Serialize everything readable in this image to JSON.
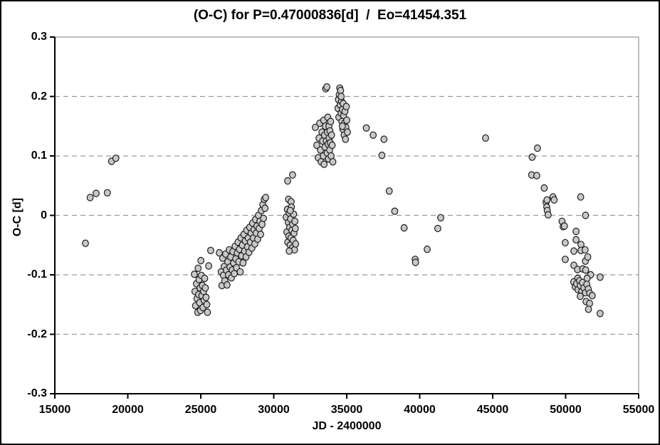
{
  "colors": {
    "background": "#ffffff",
    "outer_border": "#000000",
    "frame": "#7f7f7f",
    "axis": "#000000",
    "grid": "#999999",
    "marker_fill": "#c8c8c8",
    "marker_stroke": "#1a1a1a",
    "text": "#000000"
  },
  "chart_data": {
    "type": "scatter",
    "title": "(O-C) for P=0.47000836[d]  /  Eo=41454.351",
    "xlabel": "JD - 2400000",
    "ylabel": "O-C [d]",
    "xlim": [
      15000,
      55000
    ],
    "ylim": [
      -0.3,
      0.3
    ],
    "x_ticks": [
      15000,
      20000,
      25000,
      30000,
      35000,
      40000,
      45000,
      50000,
      55000
    ],
    "x_tick_labels": [
      "15000",
      "20000",
      "25000",
      "30000",
      "35000",
      "40000",
      "45000",
      "50000",
      "55000"
    ],
    "y_ticks": [
      0.3,
      0.2,
      0.1,
      0,
      -0.1,
      -0.2,
      -0.3
    ],
    "y_tick_labels": [
      "0.3",
      "0.2",
      "0.1",
      "0",
      "-0.1",
      "-0.2",
      "-0.3"
    ],
    "grid": "horizontal-dashed",
    "legend": "none",
    "marker": {
      "shape": "circle",
      "radius_px": 4.5
    },
    "points": [
      [
        17100,
        -0.047
      ],
      [
        17420,
        0.03
      ],
      [
        17830,
        0.037
      ],
      [
        18600,
        0.038
      ],
      [
        18890,
        0.091
      ],
      [
        19180,
        0.096
      ],
      [
        24560,
        -0.099
      ],
      [
        24600,
        -0.128
      ],
      [
        24640,
        -0.152
      ],
      [
        24700,
        -0.115
      ],
      [
        24740,
        -0.14
      ],
      [
        24790,
        -0.163
      ],
      [
        24820,
        -0.089
      ],
      [
        24850,
        -0.133
      ],
      [
        24880,
        -0.108
      ],
      [
        24920,
        -0.147
      ],
      [
        24950,
        -0.122
      ],
      [
        24980,
        -0.16
      ],
      [
        25010,
        -0.076
      ],
      [
        25040,
        -0.101
      ],
      [
        25070,
        -0.135
      ],
      [
        25110,
        -0.118
      ],
      [
        25150,
        -0.155
      ],
      [
        25190,
        -0.128
      ],
      [
        25230,
        -0.143
      ],
      [
        25270,
        -0.106
      ],
      [
        25310,
        -0.122
      ],
      [
        25360,
        -0.138
      ],
      [
        25410,
        -0.15
      ],
      [
        25460,
        -0.163
      ],
      [
        25540,
        -0.085
      ],
      [
        25680,
        -0.059
      ],
      [
        26270,
        -0.063
      ],
      [
        26400,
        -0.095
      ],
      [
        26450,
        -0.118
      ],
      [
        26500,
        -0.072
      ],
      [
        26550,
        -0.101
      ],
      [
        26600,
        -0.086
      ],
      [
        26650,
        -0.11
      ],
      [
        26700,
        -0.065
      ],
      [
        26750,
        -0.092
      ],
      [
        26800,
        -0.117
      ],
      [
        26850,
        -0.078
      ],
      [
        26900,
        -0.1
      ],
      [
        26950,
        -0.058
      ],
      [
        27000,
        -0.087
      ],
      [
        27050,
        -0.07
      ],
      [
        27100,
        -0.105
      ],
      [
        27150,
        -0.092
      ],
      [
        27200,
        -0.061
      ],
      [
        27250,
        -0.08
      ],
      [
        27300,
        -0.098
      ],
      [
        27350,
        -0.052
      ],
      [
        27400,
        -0.073
      ],
      [
        27450,
        -0.088
      ],
      [
        27500,
        -0.063
      ],
      [
        27550,
        -0.045
      ],
      [
        27600,
        -0.078
      ],
      [
        27650,
        -0.057
      ],
      [
        27700,
        -0.095
      ],
      [
        27750,
        -0.038
      ],
      [
        27800,
        -0.068
      ],
      [
        27850,
        -0.05
      ],
      [
        27900,
        -0.08
      ],
      [
        27950,
        -0.032
      ],
      [
        28000,
        -0.06
      ],
      [
        28050,
        -0.043
      ],
      [
        28100,
        -0.07
      ],
      [
        28150,
        -0.025
      ],
      [
        28200,
        -0.053
      ],
      [
        28250,
        -0.038
      ],
      [
        28300,
        -0.062
      ],
      [
        28350,
        -0.02
      ],
      [
        28400,
        -0.045
      ],
      [
        28450,
        -0.03
      ],
      [
        28500,
        -0.055
      ],
      [
        28550,
        -0.013
      ],
      [
        28600,
        -0.038
      ],
      [
        28650,
        -0.024
      ],
      [
        28700,
        -0.048
      ],
      [
        28750,
        -0.007
      ],
      [
        28800,
        -0.03
      ],
      [
        28850,
        -0.018
      ],
      [
        28900,
        -0.04
      ],
      [
        28950,
        0.0
      ],
      [
        29000,
        -0.022
      ],
      [
        29050,
        -0.01
      ],
      [
        29100,
        -0.032
      ],
      [
        29150,
        0.008
      ],
      [
        29200,
        -0.015
      ],
      [
        29250,
        0.018
      ],
      [
        29300,
        -0.005
      ],
      [
        29350,
        0.027
      ],
      [
        29400,
        0.012
      ],
      [
        29450,
        0.03
      ],
      [
        30950,
        0.058
      ],
      [
        31290,
        0.068
      ],
      [
        31010,
        0.027
      ],
      [
        31190,
        0.023
      ],
      [
        30850,
        -0.003
      ],
      [
        30900,
        -0.028
      ],
      [
        30930,
        0.01
      ],
      [
        30960,
        -0.045
      ],
      [
        31000,
        -0.012
      ],
      [
        31030,
        -0.035
      ],
      [
        31060,
        0.004
      ],
      [
        31090,
        -0.02
      ],
      [
        31120,
        -0.05
      ],
      [
        31150,
        -0.006
      ],
      [
        31180,
        -0.038
      ],
      [
        31210,
        0.014
      ],
      [
        31240,
        -0.025
      ],
      [
        31270,
        -0.055
      ],
      [
        31300,
        -0.015
      ],
      [
        31330,
        -0.042
      ],
      [
        31360,
        0.002
      ],
      [
        31390,
        -0.03
      ],
      [
        31420,
        -0.058
      ],
      [
        31450,
        -0.01
      ],
      [
        31480,
        -0.022
      ],
      [
        31500,
        -0.048
      ],
      [
        31130,
        0.008
      ],
      [
        31060,
        -0.06
      ],
      [
        32850,
        0.148
      ],
      [
        32950,
        0.118
      ],
      [
        33050,
        0.097
      ],
      [
        33100,
        0.13
      ],
      [
        33150,
        0.155
      ],
      [
        33200,
        0.11
      ],
      [
        33250,
        0.09
      ],
      [
        33300,
        0.14
      ],
      [
        33350,
        0.125
      ],
      [
        33400,
        0.1
      ],
      [
        33420,
        0.16
      ],
      [
        33450,
        0.086
      ],
      [
        33480,
        0.135
      ],
      [
        33510,
        0.115
      ],
      [
        33530,
        0.15
      ],
      [
        33560,
        0.213
      ],
      [
        33600,
        0.125
      ],
      [
        33640,
        0.216
      ],
      [
        33660,
        0.105
      ],
      [
        33680,
        0.14
      ],
      [
        33700,
        0.165
      ],
      [
        33720,
        0.12
      ],
      [
        33750,
        0.095
      ],
      [
        33780,
        0.15
      ],
      [
        33800,
        0.13
      ],
      [
        33830,
        0.11
      ],
      [
        33850,
        0.142
      ],
      [
        33880,
        0.122
      ],
      [
        33900,
        0.158
      ],
      [
        33930,
        0.1
      ],
      [
        33960,
        0.135
      ],
      [
        34000,
        0.118
      ],
      [
        34050,
        0.09
      ],
      [
        34400,
        0.18
      ],
      [
        34430,
        0.195
      ],
      [
        34460,
        0.165
      ],
      [
        34490,
        0.203
      ],
      [
        34520,
        0.214
      ],
      [
        34550,
        0.186
      ],
      [
        34580,
        0.21
      ],
      [
        34610,
        0.172
      ],
      [
        34640,
        0.192
      ],
      [
        34670,
        0.158
      ],
      [
        34700,
        0.178
      ],
      [
        34730,
        0.145
      ],
      [
        34760,
        0.188
      ],
      [
        34790,
        0.168
      ],
      [
        34820,
        0.135
      ],
      [
        34850,
        0.155
      ],
      [
        34880,
        0.175
      ],
      [
        34910,
        0.128
      ],
      [
        34940,
        0.148
      ],
      [
        34970,
        0.183
      ],
      [
        35000,
        0.16
      ],
      [
        35050,
        0.14
      ],
      [
        34620,
        0.2
      ],
      [
        34700,
        0.15
      ],
      [
        36340,
        0.147
      ],
      [
        36810,
        0.135
      ],
      [
        37410,
        0.101
      ],
      [
        37550,
        0.128
      ],
      [
        37910,
        0.041
      ],
      [
        38290,
        0.007
      ],
      [
        38930,
        -0.021
      ],
      [
        39690,
        -0.074
      ],
      [
        39710,
        -0.079
      ],
      [
        40510,
        -0.057
      ],
      [
        41240,
        -0.022
      ],
      [
        41440,
        -0.004
      ],
      [
        44510,
        0.13
      ],
      [
        47670,
        0.068
      ],
      [
        47700,
        0.098
      ],
      [
        48020,
        0.067
      ],
      [
        48070,
        0.113
      ],
      [
        48530,
        0.046
      ],
      [
        48660,
        0.022
      ],
      [
        48700,
        0.014
      ],
      [
        48720,
        0.026
      ],
      [
        48740,
        0.008
      ],
      [
        48800,
        0.001
      ],
      [
        49130,
        0.031
      ],
      [
        49210,
        0.026
      ],
      [
        49750,
        -0.01
      ],
      [
        49830,
        -0.019
      ],
      [
        49910,
        -0.018
      ],
      [
        49970,
        -0.046
      ],
      [
        49970,
        -0.074
      ],
      [
        50560,
        -0.06
      ],
      [
        50560,
        -0.084
      ],
      [
        50710,
        -0.027
      ],
      [
        50710,
        -0.041
      ],
      [
        50810,
        -0.091
      ],
      [
        51030,
        0.031
      ],
      [
        51050,
        -0.049
      ],
      [
        51050,
        -0.059
      ],
      [
        51170,
        -0.09
      ],
      [
        51330,
        -0.058
      ],
      [
        51350,
        -0.077
      ],
      [
        51360,
        0.0
      ],
      [
        51370,
        -0.092
      ],
      [
        51510,
        -0.07
      ],
      [
        51710,
        -0.1
      ],
      [
        52360,
        -0.104
      ],
      [
        50820,
        -0.106
      ],
      [
        51470,
        -0.106
      ],
      [
        50550,
        -0.112
      ],
      [
        50650,
        -0.12
      ],
      [
        50750,
        -0.115
      ],
      [
        50850,
        -0.125
      ],
      [
        50950,
        -0.11
      ],
      [
        51000,
        -0.118
      ],
      [
        51100,
        -0.128
      ],
      [
        51150,
        -0.113
      ],
      [
        51250,
        -0.122
      ],
      [
        51350,
        -0.13
      ],
      [
        51450,
        -0.116
      ],
      [
        51550,
        -0.124
      ],
      [
        51650,
        -0.131
      ],
      [
        51000,
        -0.136
      ],
      [
        51820,
        -0.135
      ],
      [
        51400,
        -0.145
      ],
      [
        51640,
        -0.148
      ],
      [
        51560,
        -0.158
      ],
      [
        52360,
        -0.165
      ]
    ]
  }
}
